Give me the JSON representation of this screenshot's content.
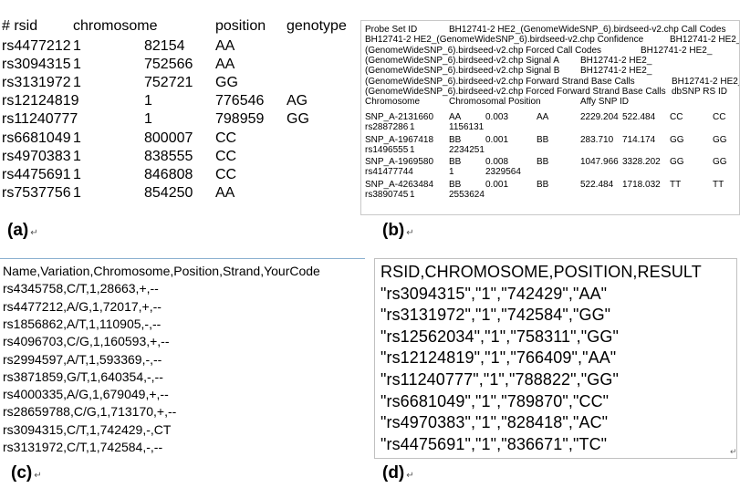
{
  "panel_a": {
    "label": "(a)",
    "header": [
      "# rsid",
      "chromosome",
      "position",
      "genotype"
    ],
    "rows": [
      {
        "rsid": "rs4477212",
        "chrom": "1",
        "pos": "82154",
        "geno": "AA"
      },
      {
        "rsid": "rs3094315",
        "chrom": "1",
        "pos": "752566",
        "geno": "AA"
      },
      {
        "rsid": "rs3131972",
        "chrom": "1",
        "pos": "752721",
        "geno": "GG"
      },
      {
        "rsid": "rs12124819",
        "chrom": "1",
        "pos": "776546",
        "geno": "AG"
      },
      {
        "rsid": "rs11240777",
        "chrom": "1",
        "pos": "798959",
        "geno": "GG"
      },
      {
        "rsid": "rs6681049",
        "chrom": "1",
        "pos": "800007",
        "geno": "CC"
      },
      {
        "rsid": "rs4970383",
        "chrom": "1",
        "pos": "838555",
        "geno": "CC"
      },
      {
        "rsid": "rs4475691",
        "chrom": "1",
        "pos": "846808",
        "geno": "CC"
      },
      {
        "rsid": "rs7537756",
        "chrom": "1",
        "pos": "854250",
        "geno": "AA"
      }
    ]
  },
  "panel_b": {
    "label": "(b)",
    "header_lines": [
      [
        "Probe Set ID",
        "BH12741-2 HE2_(GenomeWideSNP_6).birdseed-v2.chp Call Codes"
      ],
      [
        "BH12741-2 HE2_(GenomeWideSNP_6).birdseed-v2.chp Confidence",
        "BH12741-2 HE2_"
      ],
      [
        "(GenomeWideSNP_6).birdseed-v2.chp Forced Call Codes",
        "BH12741-2 HE2_"
      ],
      [
        "(GenomeWideSNP_6).birdseed-v2.chp Signal A",
        "BH12741-2 HE2_"
      ],
      [
        "(GenomeWideSNP_6).birdseed-v2.chp Signal B",
        "BH12741-2 HE2_"
      ],
      [
        "(GenomeWideSNP_6).birdseed-v2.chp Forward Strand Base Calls",
        "BH12741-2 HE2_"
      ],
      [
        "(GenomeWideSNP_6).birdseed-v2.chp Forced Forward Strand Base Calls",
        "dbSNP RS ID"
      ],
      [
        "Chromosome",
        "Chromosomal Position",
        "Affy SNP ID"
      ]
    ],
    "records": [
      {
        "probe": "SNP_A-2131660",
        "call": "AA",
        "conf": "0.003",
        "forced": "AA",
        "sigA": "2229.204",
        "sigB": "522.484",
        "fwd": "CC",
        "ffwd": "CC",
        "rs": "rs2887286",
        "chrom": "1",
        "pos": "1156131"
      },
      {
        "probe": "SNP_A-1967418",
        "call": "BB",
        "conf": "0.001",
        "forced": "BB",
        "sigA": "283.710",
        "sigB": "714.174",
        "fwd": "GG",
        "ffwd": "GG",
        "rs": "rs1496555",
        "chrom": "1",
        "pos": "2234251"
      },
      {
        "probe": "SNP_A-1969580",
        "call": "BB",
        "conf": "0.008",
        "forced": "BB",
        "sigA": "1047.966",
        "sigB": "3328.202",
        "fwd": "GG",
        "ffwd": "GG",
        "rs": "rs41477744",
        "chrom": "1",
        "pos": "2329564"
      },
      {
        "probe": "SNP_A-4263484",
        "call": "BB",
        "conf": "0.001",
        "forced": "BB",
        "sigA": "522.484",
        "sigB": "1718.032",
        "fwd": "TT",
        "ffwd": "TT",
        "rs": "rs3890745",
        "chrom": "1",
        "pos": "2553624"
      }
    ]
  },
  "panel_c": {
    "label": "(c)",
    "lines": [
      "Name,Variation,Chromosome,Position,Strand,YourCode",
      "rs4345758,C/T,1,28663,+,--",
      "rs4477212,A/G,1,72017,+,--",
      "rs1856862,A/T,1,110905,-,--",
      "rs4096703,C/G,1,160593,+,--",
      "rs2994597,A/T,1,593369,-,--",
      "rs3871859,G/T,1,640354,-,--",
      "rs4000335,A/G,1,679049,+,--",
      "rs28659788,C/G,1,713170,+,--",
      "rs3094315,C/T,1,742429,-,CT",
      "rs3131972,C/T,1,742584,-,--"
    ]
  },
  "panel_d": {
    "label": "(d)",
    "lines": [
      "RSID,CHROMOSOME,POSITION,RESULT",
      "\"rs3094315\",\"1\",\"742429\",\"AA\"",
      "\"rs3131972\",\"1\",\"742584\",\"GG\"",
      "\"rs12562034\",\"1\",\"758311\",\"GG\"",
      "\"rs12124819\",\"1\",\"766409\",\"AA\"",
      "\"rs11240777\",\"1\",\"788822\",\"GG\"",
      "\"rs6681049\",\"1\",\"789870\",\"CC\"",
      "\"rs4970383\",\"1\",\"828418\",\"AC\"",
      "\"rs4475691\",\"1\",\"836671\",\"TC\""
    ]
  },
  "return_mark": "↵"
}
